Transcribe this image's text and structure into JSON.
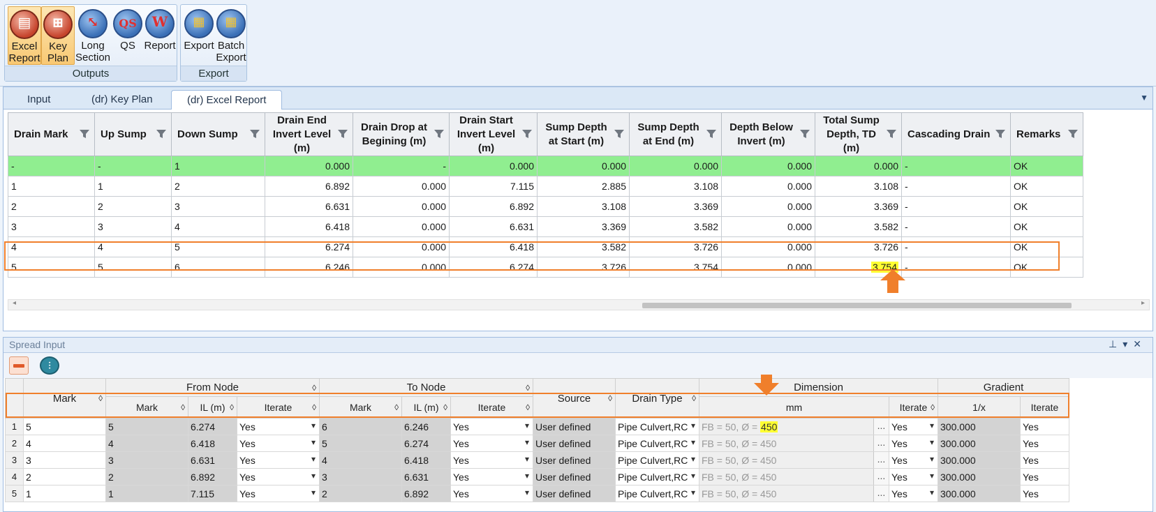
{
  "ribbon": {
    "groups": [
      {
        "label": "Outputs",
        "buttons": [
          {
            "line1": "Excel",
            "line2": "Report",
            "glyph": "▤",
            "icon": "excel-report-icon"
          },
          {
            "line1": "Key",
            "line2": "Plan",
            "glyph": "⊞",
            "icon": "key-plan-icon"
          },
          {
            "line1": "Long",
            "line2": "Section",
            "glyph": "⤡",
            "icon": "long-section-icon"
          },
          {
            "line1": "QS",
            "line2": "",
            "glyph": "QS",
            "icon": "qs-icon"
          },
          {
            "line1": "Report",
            "line2": "",
            "glyph": "W",
            "icon": "report-icon"
          }
        ]
      },
      {
        "label": "Export",
        "buttons": [
          {
            "line1": "Export",
            "line2": "",
            "glyph": "▦",
            "icon": "export-icon"
          },
          {
            "line1": "Batch",
            "line2": "Export",
            "glyph": "▦",
            "icon": "batch-export-icon"
          }
        ]
      }
    ]
  },
  "report_tabs": [
    "Input",
    "(dr) Key Plan",
    "(dr) Excel Report"
  ],
  "report_table": {
    "headers": [
      "Drain Mark",
      "Up Sump",
      "Down Sump",
      "Drain End Invert Level (m)",
      "Drain Drop at Begining (m)",
      "Drain Start Invert Level (m)",
      "Sump Depth at Start (m)",
      "Sump Depth at End (m)",
      "Depth Below Invert (m)",
      "Total Sump Depth, TD (m)",
      "Cascading Drain",
      "Remarks"
    ],
    "rows": [
      [
        "-",
        "-",
        "1",
        "0.000",
        "-",
        "0.000",
        "0.000",
        "0.000",
        "0.000",
        "0.000",
        "-",
        "OK"
      ],
      [
        "1",
        "1",
        "2",
        "6.892",
        "0.000",
        "7.115",
        "2.885",
        "3.108",
        "0.000",
        "3.108",
        "-",
        "OK"
      ],
      [
        "2",
        "2",
        "3",
        "6.631",
        "0.000",
        "6.892",
        "3.108",
        "3.369",
        "0.000",
        "3.369",
        "-",
        "OK"
      ],
      [
        "3",
        "3",
        "4",
        "6.418",
        "0.000",
        "6.631",
        "3.369",
        "3.582",
        "0.000",
        "3.582",
        "-",
        "OK"
      ],
      [
        "4",
        "4",
        "5",
        "6.274",
        "0.000",
        "6.418",
        "3.582",
        "3.726",
        "0.000",
        "3.726",
        "-",
        "OK"
      ],
      [
        "5",
        "5",
        "6",
        "6.246",
        "0.000",
        "6.274",
        "3.726",
        "3.754",
        "0.000",
        "3.754",
        "-",
        "OK"
      ]
    ]
  },
  "spread": {
    "title": "Spread Input",
    "group_headers": {
      "mark": "Mark",
      "from_node": "From Node",
      "to_node": "To Node",
      "source": "Source",
      "drain_type": "Drain Type",
      "dimension": "Dimension",
      "gradient": "Gradient"
    },
    "sub_headers": {
      "from_mark": "Mark",
      "from_il": "IL (m)",
      "from_iterate": "Iterate",
      "to_mark": "Mark",
      "to_il": "IL (m)",
      "to_iterate": "Iterate",
      "dim_mm": "mm",
      "dim_iterate": "Iterate",
      "grad_1x": "1/x",
      "grad_iterate": "Iterate"
    },
    "rows": [
      {
        "no": "1",
        "mark": "5",
        "from_mark": "5",
        "from_il": "6.274",
        "from_iterate": "Yes",
        "to_mark": "6",
        "to_il": "6.246",
        "to_iterate": "Yes",
        "source": "User defined",
        "drain_type": "Pipe Culvert,RC",
        "dim_prefix": "FB = 50, Ø = ",
        "dim_value": "450",
        "dim_iterate": "Yes",
        "grad": "300.000",
        "grad_iterate": "Yes"
      },
      {
        "no": "2",
        "mark": "4",
        "from_mark": "4",
        "from_il": "6.418",
        "from_iterate": "Yes",
        "to_mark": "5",
        "to_il": "6.274",
        "to_iterate": "Yes",
        "source": "User defined",
        "drain_type": "Pipe Culvert,RC",
        "dim_prefix": "FB = 50, Ø = ",
        "dim_value": "450",
        "dim_iterate": "Yes",
        "grad": "300.000",
        "grad_iterate": "Yes"
      },
      {
        "no": "3",
        "mark": "3",
        "from_mark": "3",
        "from_il": "6.631",
        "from_iterate": "Yes",
        "to_mark": "4",
        "to_il": "6.418",
        "to_iterate": "Yes",
        "source": "User defined",
        "drain_type": "Pipe Culvert,RC",
        "dim_prefix": "FB = 50, Ø = ",
        "dim_value": "450",
        "dim_iterate": "Yes",
        "grad": "300.000",
        "grad_iterate": "Yes"
      },
      {
        "no": "4",
        "mark": "2",
        "from_mark": "2",
        "from_il": "6.892",
        "from_iterate": "Yes",
        "to_mark": "3",
        "to_il": "6.631",
        "to_iterate": "Yes",
        "source": "User defined",
        "drain_type": "Pipe Culvert,RC",
        "dim_prefix": "FB = 50, Ø = ",
        "dim_value": "450",
        "dim_iterate": "Yes",
        "grad": "300.000",
        "grad_iterate": "Yes"
      },
      {
        "no": "5",
        "mark": "1",
        "from_mark": "1",
        "from_il": "7.115",
        "from_iterate": "Yes",
        "to_mark": "2",
        "to_il": "6.892",
        "to_iterate": "Yes",
        "source": "User defined",
        "drain_type": "Pipe Culvert,RC",
        "dim_prefix": "FB = 50, Ø = ",
        "dim_value": "450",
        "dim_iterate": "Yes",
        "grad": "300.000",
        "grad_iterate": "Yes"
      }
    ]
  },
  "colors": {
    "accent_orange": "#f07f2b",
    "highlight_yellow": "#ffff33",
    "row_green": "#90ee90",
    "ribbon_active": "#f8c873"
  }
}
